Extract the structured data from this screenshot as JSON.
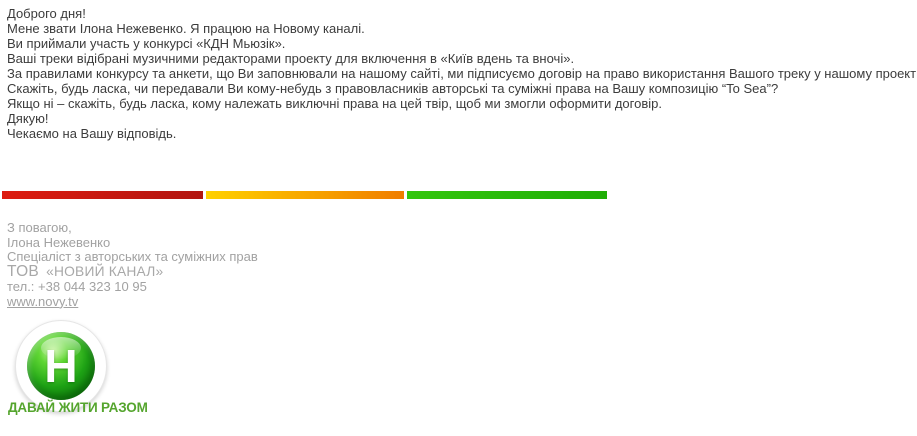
{
  "email": {
    "body_lines": [
      "Доброго дня!",
      "Мене звати Ілона Нежевенко. Я працюю на Новому каналі.",
      "Ви приймали участь у конкурсі «КДН Мьюзік».",
      "Ваші треки відібрані музичними редакторами проекту для включення в «Київ вдень та вночі».",
      "За правилами конкурсу та анкети, що Ви заповнювали на нашому сайті, ми підписуємо договір на право використання Вашого треку у нашому проекті.",
      "Скажіть, будь ласка, чи передавали Ви кому-небудь з правовласників авторські та суміжні права на Вашу композицію “To Sea”?",
      "Якщо ні – скажіть, будь ласка, кому належать виключні права на цей твір, щоб ми змогли оформити договір.",
      "Дякую!",
      "Чекаємо на Вашу відповідь."
    ]
  },
  "divider": {
    "segments": [
      {
        "name": "red",
        "from": "#dd1c10",
        "to": "#b21510"
      },
      {
        "name": "yellow-orange",
        "from": "#ffd100",
        "to": "#f07d00"
      },
      {
        "name": "green",
        "from": "#33c60d",
        "to": "#1fae06"
      }
    ]
  },
  "signature": {
    "regards": "З повагою,",
    "name": "Ілона Нежевенко",
    "title": "Спеціаліст з авторських та суміжних прав",
    "company_prefix": "ТОВ",
    "company_name": "«НОВИЙ КАНАЛ»",
    "phone": "тел.: +38 044 323 10 95",
    "website": "www.novy.tv"
  },
  "logo": {
    "letter": "Н",
    "slogan": "ДАВАЙ ЖИТИ РАЗОМ"
  },
  "colors": {
    "body_text": "#3c3c3c",
    "signature_text": "#a2a2a2",
    "slogan_green": "#55a52e",
    "logo_green_dark": "#0a730a",
    "logo_green_light": "#5fd633"
  }
}
